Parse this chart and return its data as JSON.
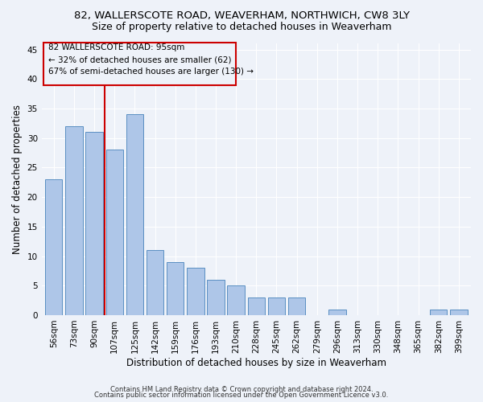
{
  "title1": "82, WALLERSCOTE ROAD, WEAVERHAM, NORTHWICH, CW8 3LY",
  "title2": "Size of property relative to detached houses in Weaverham",
  "xlabel": "Distribution of detached houses by size in Weaverham",
  "ylabel": "Number of detached properties",
  "categories": [
    "56sqm",
    "73sqm",
    "90sqm",
    "107sqm",
    "125sqm",
    "142sqm",
    "159sqm",
    "176sqm",
    "193sqm",
    "210sqm",
    "228sqm",
    "245sqm",
    "262sqm",
    "279sqm",
    "296sqm",
    "313sqm",
    "330sqm",
    "348sqm",
    "365sqm",
    "382sqm",
    "399sqm"
  ],
  "values": [
    23,
    32,
    31,
    28,
    34,
    11,
    9,
    8,
    6,
    5,
    3,
    3,
    3,
    0,
    1,
    0,
    0,
    0,
    0,
    1,
    1
  ],
  "bar_color": "#aec6e8",
  "bar_edge_color": "#5a8fc2",
  "vline_x": 2.5,
  "vline_color": "#cc0000",
  "ann_line1": "82 WALLERSCOTE ROAD: 95sqm",
  "ann_line2": "← 32% of detached houses are smaller (62)",
  "ann_line3": "67% of semi-detached houses are larger (130) →",
  "ylim": [
    0,
    46
  ],
  "yticks": [
    0,
    5,
    10,
    15,
    20,
    25,
    30,
    35,
    40,
    45
  ],
  "footnote1": "Contains HM Land Registry data © Crown copyright and database right 2024.",
  "footnote2": "Contains public sector information licensed under the Open Government Licence v3.0.",
  "bg_color": "#eef2f9",
  "grid_color": "#ffffff",
  "title_fontsize": 9.5,
  "subtitle_fontsize": 9,
  "tick_fontsize": 7.5,
  "label_fontsize": 8.5,
  "footnote_fontsize": 6
}
